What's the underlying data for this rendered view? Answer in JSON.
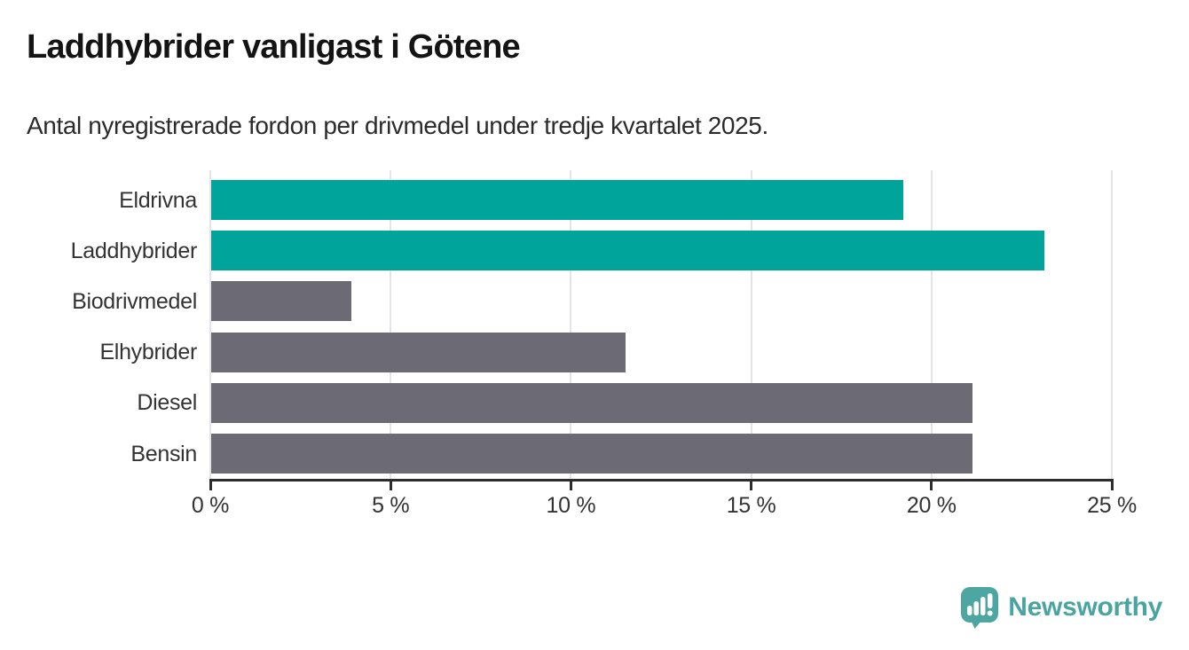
{
  "chart_data": {
    "type": "bar",
    "orientation": "horizontal",
    "title": "Laddhybrider vanligast i Götene",
    "subtitle": "Antal nyregistrerade fordon per drivmedel under tredje kvartalet 2025.",
    "categories": [
      "Eldrivna",
      "Laddhybrider",
      "Biodrivmedel",
      "Elhybrider",
      "Diesel",
      "Bensin"
    ],
    "values": [
      19.2,
      23.1,
      3.9,
      11.5,
      21.1,
      21.1
    ],
    "unit": "%",
    "xlabel": "",
    "ylabel": "",
    "xlim": [
      0,
      25
    ],
    "x_tick_values": [
      0,
      5,
      10,
      15,
      20,
      25
    ],
    "x_tick_labels": [
      "0 %",
      "5 %",
      "10 %",
      "15 %",
      "20 %",
      "25 %"
    ],
    "grid": "vertical",
    "legend": false,
    "bar_colors": [
      "#00a49b",
      "#00a49b",
      "#6c6a74",
      "#6c6a74",
      "#6c6a74",
      "#6c6a74"
    ],
    "highlight_color": "#00a49b",
    "base_color": "#6c6a74"
  },
  "style": {
    "grid_color": "#e4e4e4",
    "axis_color": "#2d2d2d",
    "label_color": "#333333",
    "title_color": "#141414",
    "brand_color": "#4aa5a1"
  },
  "footer": {
    "brand": "Newsworthy"
  }
}
